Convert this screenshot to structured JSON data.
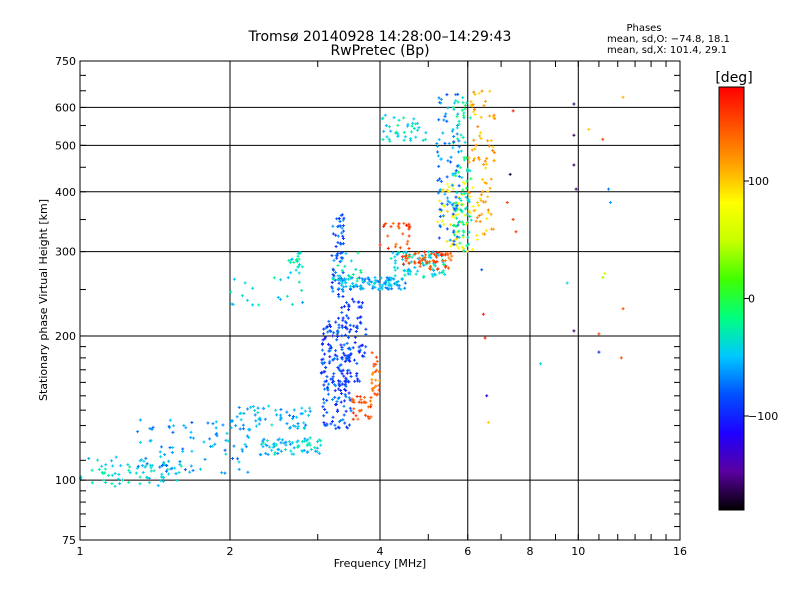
{
  "chart_data": {
    "type": "scatter",
    "title": "Tromsø 20140928 14:28:00–14:29:43",
    "subtitle": "RwPretec (Bp)",
    "xlabel": "Frequency [MHz]",
    "ylabel": "Stationary phase Virtual Height [km]",
    "x_scale": "log",
    "y_scale": "log",
    "xlim": [
      1,
      16
    ],
    "ylim": [
      75,
      750
    ],
    "x_ticks": [
      1,
      2,
      4,
      6,
      8,
      10,
      16
    ],
    "x_tick_labels": [
      "1",
      "2",
      "4",
      "6",
      "8",
      "10",
      "16"
    ],
    "y_ticks": [
      75,
      100,
      200,
      300,
      400,
      500,
      600,
      750
    ],
    "y_tick_labels": [
      "75",
      "100",
      "200",
      "300",
      "400",
      "500",
      "600",
      "750"
    ],
    "grid": true,
    "stats": {
      "heading": "Phases",
      "line_o": "mean, sd,O: −74.8, 18.1",
      "line_x": "mean, sd,X: 101.4, 29.1"
    },
    "colorbar": {
      "label": "[deg]",
      "range": [
        -180,
        180
      ],
      "tick_values": [
        100,
        0,
        -100
      ],
      "tick_labels": [
        "100",
        "0",
        "−100"
      ],
      "colormap": [
        "#000000",
        "#5a00a0",
        "#1e00ff",
        "#0050ff",
        "#00c8ff",
        "#00ff80",
        "#40ff00",
        "#c8ff00",
        "#ffff00",
        "#ffa000",
        "#ff5000",
        "#ff0000"
      ]
    },
    "series": [
      {
        "f": [
          1.0,
          1.6
        ],
        "h": [
          97,
          112
        ],
        "phase": -40,
        "n": 70
      },
      {
        "f": [
          1.3,
          2.2
        ],
        "h": [
          103,
          135
        ],
        "phase": -60,
        "n": 90
      },
      {
        "f": [
          2.0,
          2.9
        ],
        "h": [
          128,
          143
        ],
        "phase": -55,
        "n": 60
      },
      {
        "f": [
          2.3,
          3.1
        ],
        "h": [
          113,
          123
        ],
        "phase": -45,
        "n": 70
      },
      {
        "f": [
          3.05,
          3.5
        ],
        "h": [
          128,
          215
        ],
        "phase": -85,
        "n": 170
      },
      {
        "f": [
          3.3,
          3.75
        ],
        "h": [
          160,
          240
        ],
        "phase": -90,
        "n": 80
      },
      {
        "f": [
          3.5,
          3.85
        ],
        "h": [
          134,
          150
        ],
        "phase": 150,
        "n": 30
      },
      {
        "f": [
          3.85,
          4.0
        ],
        "h": [
          150,
          185
        ],
        "phase": 140,
        "n": 25
      },
      {
        "f": [
          3.2,
          3.4
        ],
        "h": [
          240,
          360
        ],
        "phase": -80,
        "n": 60
      },
      {
        "f": [
          3.3,
          4.5
        ],
        "h": [
          250,
          265
        ],
        "phase": -55,
        "n": 100
      },
      {
        "f": [
          4.2,
          5.4
        ],
        "h": [
          265,
          300
        ],
        "phase": -40,
        "n": 80
      },
      {
        "f": [
          4.4,
          5.6
        ],
        "h": [
          275,
          300
        ],
        "phase": 150,
        "n": 60
      },
      {
        "f": [
          4.0,
          4.6
        ],
        "h": [
          300,
          345
        ],
        "phase": 155,
        "n": 25
      },
      {
        "f": [
          5.2,
          6.3
        ],
        "h": [
          300,
          420
        ],
        "phase": 80,
        "n": 60
      },
      {
        "f": [
          5.6,
          6.1
        ],
        "h": [
          300,
          640
        ],
        "phase": -25,
        "n": 90
      },
      {
        "f": [
          5.2,
          5.8
        ],
        "h": [
          310,
          640
        ],
        "phase": -70,
        "n": 80
      },
      {
        "f": [
          6.0,
          6.8
        ],
        "h": [
          320,
          650
        ],
        "phase": 110,
        "n": 80
      },
      {
        "f": [
          3.2,
          3.7
        ],
        "h": [
          260,
          300
        ],
        "phase": -30,
        "n": 20
      },
      {
        "f": [
          4.0,
          5.0
        ],
        "h": [
          505,
          580
        ],
        "phase": -35,
        "n": 40
      },
      {
        "f": [
          2.0,
          2.8
        ],
        "h": [
          232,
          265
        ],
        "phase": -40,
        "n": 20
      },
      {
        "f": [
          2.6,
          2.8
        ],
        "h": [
          270,
          300
        ],
        "phase": -35,
        "n": 20
      }
    ],
    "sparse_points": [
      [
        6.4,
        275,
        -80
      ],
      [
        6.45,
        222,
        170
      ],
      [
        6.5,
        198,
        170
      ],
      [
        6.55,
        150,
        -120
      ],
      [
        6.6,
        132,
        100
      ],
      [
        7.2,
        380,
        155
      ],
      [
        7.4,
        350,
        155
      ],
      [
        7.5,
        330,
        160
      ],
      [
        7.3,
        435,
        -170
      ],
      [
        7.4,
        590,
        170
      ],
      [
        8.4,
        175,
        -40
      ],
      [
        9.5,
        258,
        -40
      ],
      [
        9.8,
        610,
        -160
      ],
      [
        9.8,
        525,
        -160
      ],
      [
        9.8,
        455,
        -160
      ],
      [
        9.9,
        405,
        -160
      ],
      [
        9.8,
        205,
        -160
      ],
      [
        10.5,
        540,
        100
      ],
      [
        11.2,
        515,
        150
      ],
      [
        11.5,
        405,
        -70
      ],
      [
        11.6,
        380,
        -60
      ],
      [
        11.3,
        270,
        60
      ],
      [
        11.2,
        265,
        40
      ],
      [
        11.0,
        202,
        150
      ],
      [
        11.0,
        185,
        -100
      ],
      [
        12.3,
        630,
        110
      ],
      [
        12.3,
        228,
        150
      ],
      [
        12.2,
        180,
        150
      ]
    ]
  }
}
